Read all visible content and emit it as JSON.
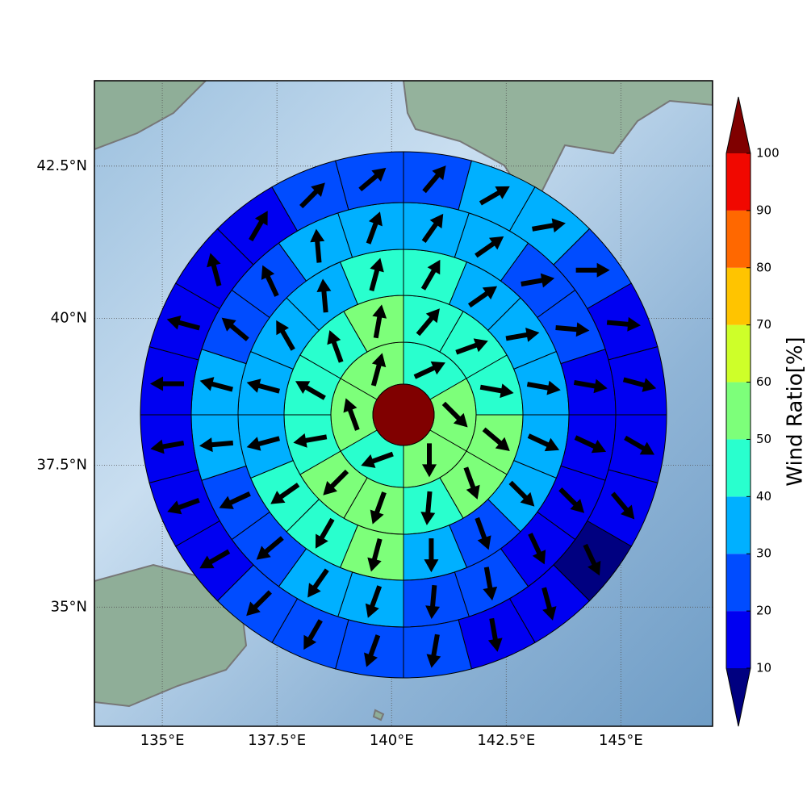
{
  "chart_data": {
    "type": "polar-grid-map",
    "xlim": [
      133.52,
      147.0
    ],
    "ylim": [
      32.84,
      43.86
    ],
    "xticks": [
      {
        "value": 135,
        "label": "135°E"
      },
      {
        "value": 137.5,
        "label": "137.5°E"
      },
      {
        "value": 140,
        "label": "140°E"
      },
      {
        "value": 142.5,
        "label": "142.5°E"
      },
      {
        "value": 145,
        "label": "145°E"
      }
    ],
    "yticks": [
      {
        "value": 35,
        "label": "35°N"
      },
      {
        "value": 37.5,
        "label": "37.5°N"
      },
      {
        "value": 40,
        "label": "40°N"
      },
      {
        "value": 42.5,
        "label": "42.5°N"
      }
    ],
    "grid": true,
    "center_value": 105,
    "rings": [
      {
        "values": [
          45,
          55,
          55,
          45,
          55,
          55
        ],
        "directions": [
          65,
          135,
          180,
          250,
          340,
          15
        ]
      },
      {
        "values": [
          45,
          45,
          45,
          55,
          55,
          45,
          55,
          55,
          45,
          45,
          45,
          55
        ],
        "directions": [
          40,
          70,
          100,
          130,
          160,
          185,
          200,
          225,
          260,
          300,
          340,
          10
        ]
      },
      {
        "values": [
          45,
          35,
          35,
          35,
          35,
          35,
          25,
          35,
          55,
          45,
          45,
          35,
          35,
          35,
          35,
          45
        ],
        "directions": [
          30,
          55,
          80,
          100,
          115,
          135,
          160,
          180,
          195,
          210,
          235,
          255,
          285,
          330,
          355,
          15
        ]
      },
      {
        "values": [
          35,
          35,
          25,
          25,
          15,
          15,
          15,
          15,
          25,
          25,
          35,
          35,
          25,
          25,
          35,
          35,
          25,
          25,
          35,
          35
        ],
        "directions": [
          35,
          55,
          80,
          95,
          100,
          115,
          135,
          155,
          170,
          185,
          200,
          215,
          230,
          245,
          265,
          285,
          310,
          335,
          355,
          20
        ]
      },
      {
        "values": [
          25,
          35,
          35,
          25,
          15,
          15,
          15,
          15,
          5,
          15,
          15,
          25,
          25,
          25,
          25,
          15,
          15,
          15,
          15,
          15,
          15,
          15,
          25,
          25
        ],
        "directions": [
          40,
          60,
          80,
          90,
          95,
          105,
          120,
          140,
          155,
          165,
          170,
          190,
          200,
          210,
          225,
          240,
          250,
          260,
          270,
          285,
          345,
          30,
          45,
          50
        ]
      }
    ],
    "colorbar": {
      "label": "Wind Ratio[%]",
      "ticks": [
        10,
        20,
        30,
        40,
        50,
        60,
        70,
        80,
        90,
        100
      ],
      "colors": [
        "#000080",
        "#0000f1",
        "#004cff",
        "#00b0ff",
        "#29ffce",
        "#7dff7a",
        "#ceff29",
        "#ffc400",
        "#ff6800",
        "#f10800",
        "#800000"
      ]
    }
  }
}
